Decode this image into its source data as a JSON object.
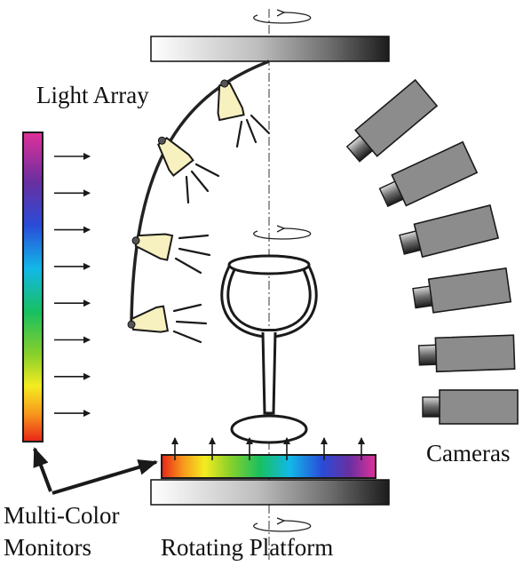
{
  "labels": {
    "light_array": "Light Array",
    "cameras": "Cameras",
    "multi_color": "Multi-Color",
    "monitors": "Monitors",
    "rotating_platform": "Rotating Platform"
  },
  "counts": {
    "lights": 4,
    "cameras": 6,
    "monitor_arrows_left": 8,
    "monitor_arrows_bottom": 6
  },
  "colors": {
    "camera_body": "#8c8c8c",
    "lamp_fill": "#f7f0bf",
    "stroke": "#1a1a1a"
  }
}
